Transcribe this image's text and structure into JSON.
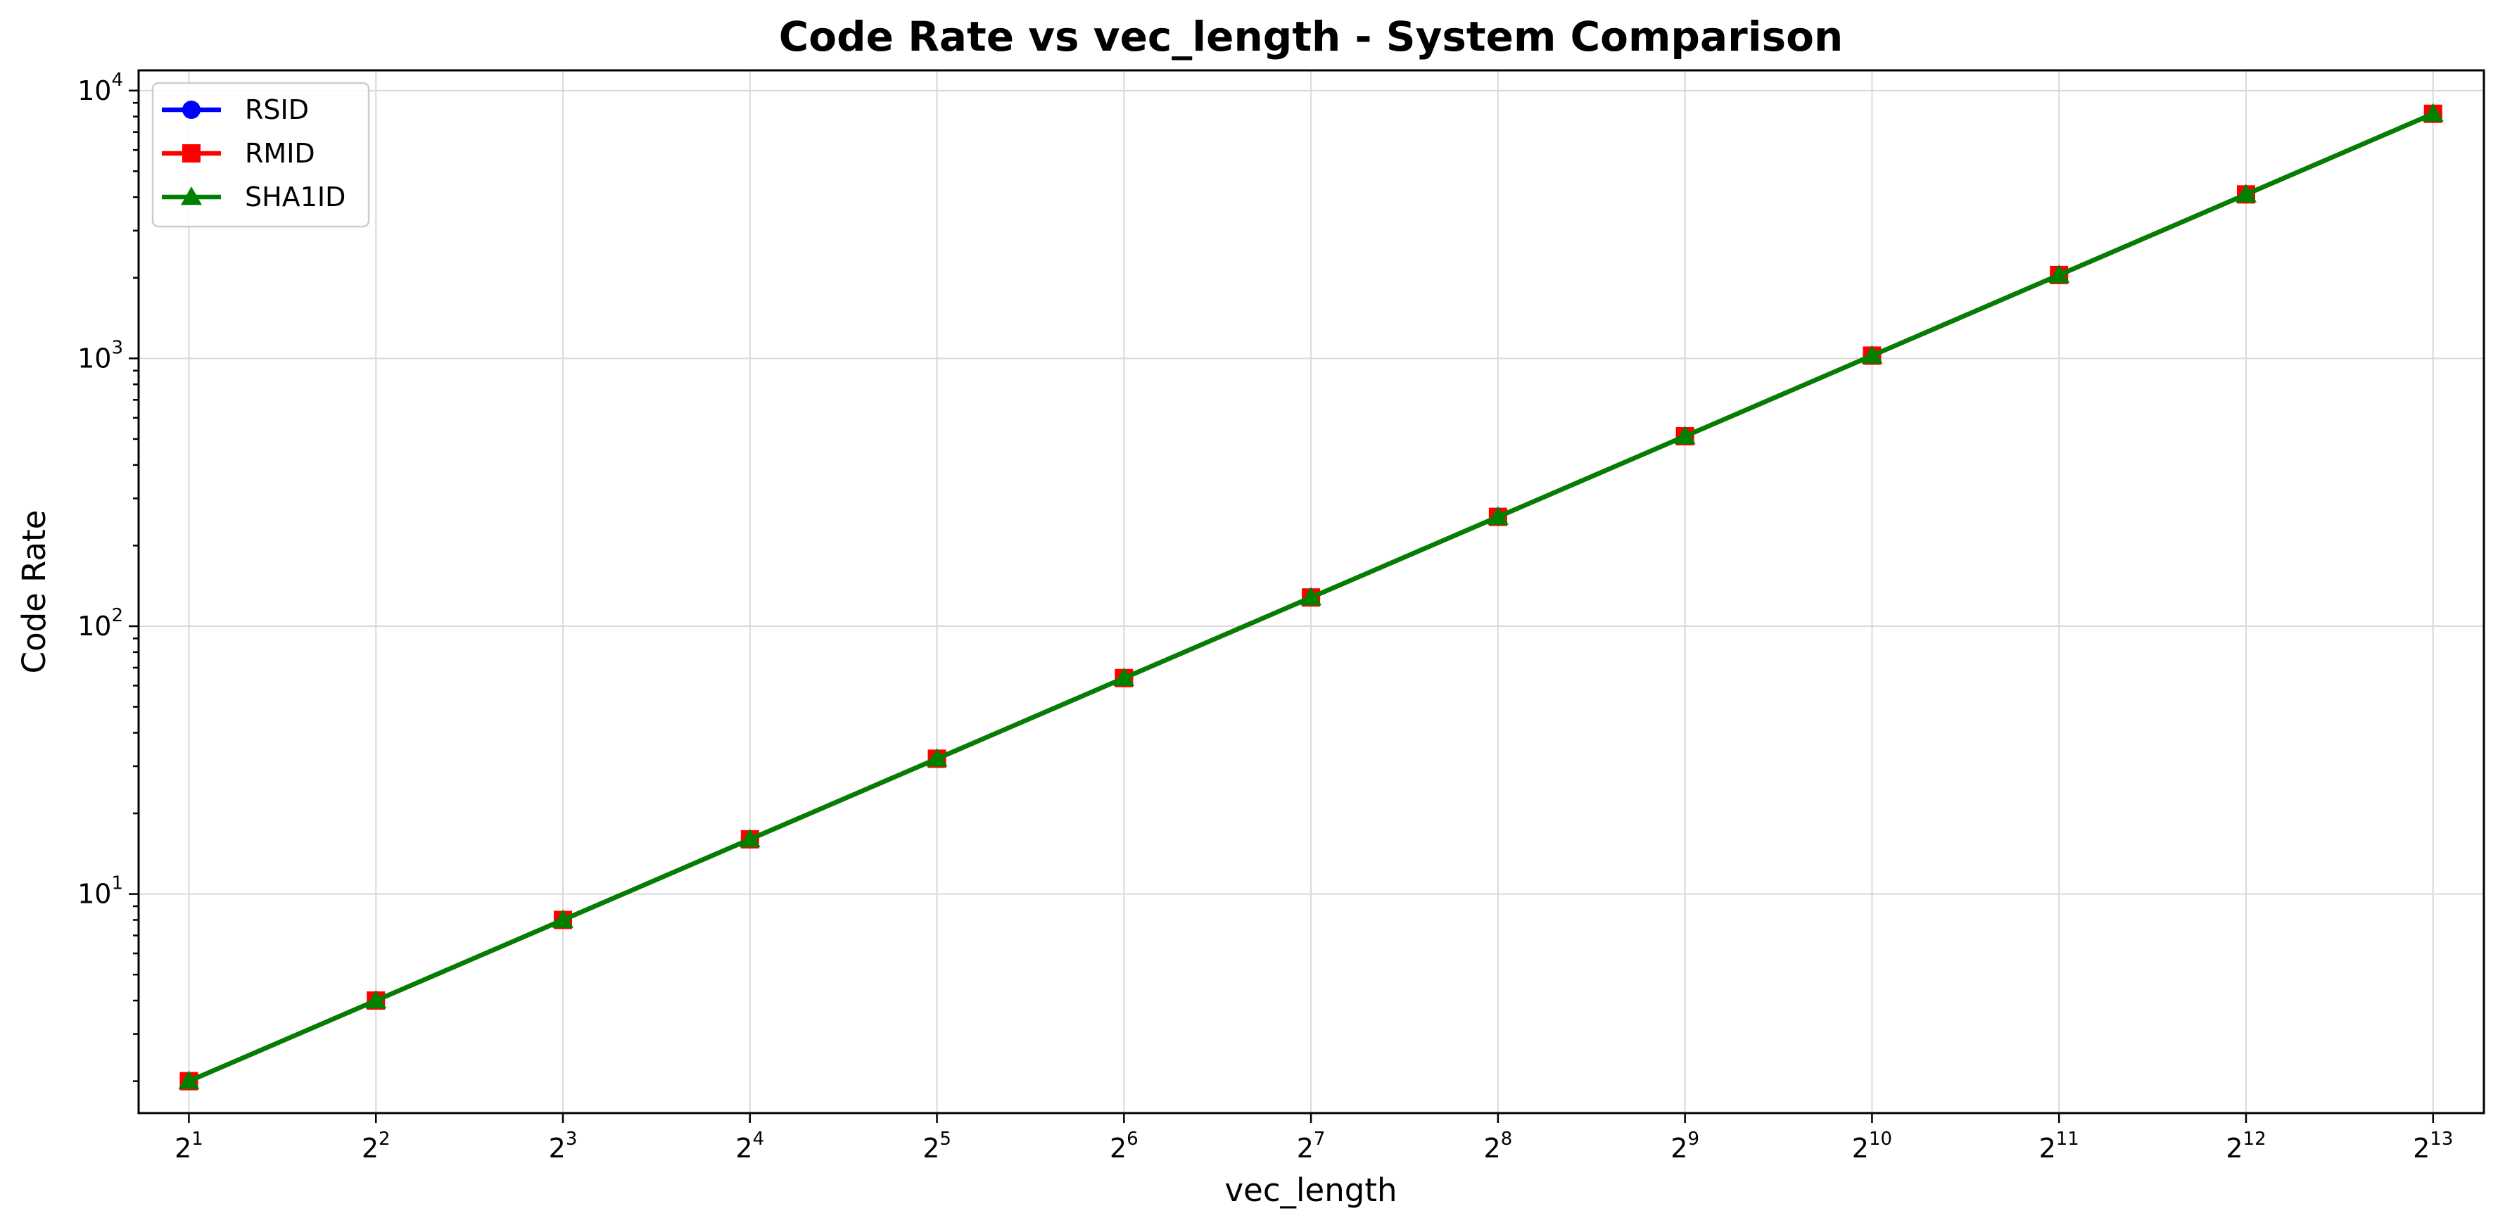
{
  "chart_data": {
    "type": "line",
    "title": "Code Rate vs vec_length - System Comparison",
    "xlabel": "vec_length",
    "ylabel": "Code Rate",
    "x_scale": "log2",
    "y_scale": "log10",
    "x": [
      2,
      4,
      8,
      16,
      32,
      64,
      128,
      256,
      512,
      1024,
      2048,
      4096,
      8192
    ],
    "x_tick_labels": [
      {
        "base": "2",
        "exp": "1"
      },
      {
        "base": "2",
        "exp": "2"
      },
      {
        "base": "2",
        "exp": "3"
      },
      {
        "base": "2",
        "exp": "4"
      },
      {
        "base": "2",
        "exp": "5"
      },
      {
        "base": "2",
        "exp": "6"
      },
      {
        "base": "2",
        "exp": "7"
      },
      {
        "base": "2",
        "exp": "8"
      },
      {
        "base": "2",
        "exp": "9"
      },
      {
        "base": "2",
        "exp": "10"
      },
      {
        "base": "2",
        "exp": "11"
      },
      {
        "base": "2",
        "exp": "12"
      },
      {
        "base": "2",
        "exp": "13"
      }
    ],
    "y_tick_labels": [
      {
        "value": 10,
        "base": "10",
        "exp": "1"
      },
      {
        "value": 100,
        "base": "10",
        "exp": "2"
      },
      {
        "value": 1000,
        "base": "10",
        "exp": "3"
      },
      {
        "value": 10000,
        "base": "10",
        "exp": "4"
      }
    ],
    "xlim": [
      1.66,
      9890
    ],
    "ylim": [
      1.52,
      11900
    ],
    "grid": true,
    "legend_position": "top-left",
    "series": [
      {
        "name": "RSID",
        "color": "#0000ff",
        "marker": "circle",
        "values": [
          2,
          4,
          8,
          16,
          32,
          64,
          128,
          256,
          512,
          1024,
          2048,
          4096,
          8192
        ]
      },
      {
        "name": "RMID",
        "color": "#ff0000",
        "marker": "square",
        "values": [
          2,
          4,
          8,
          16,
          32,
          64,
          128,
          256,
          512,
          1024,
          2048,
          4096,
          8192
        ]
      },
      {
        "name": "SHA1ID",
        "color": "#008000",
        "marker": "triangle",
        "values": [
          2,
          4,
          8,
          16,
          32,
          64,
          128,
          256,
          512,
          1024,
          2048,
          4096,
          8192
        ]
      }
    ]
  }
}
